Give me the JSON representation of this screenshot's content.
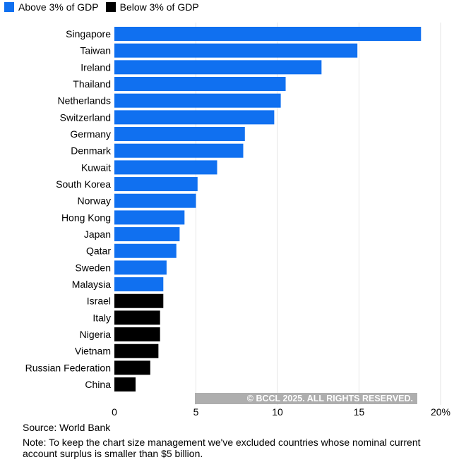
{
  "chart_data": {
    "type": "bar",
    "orientation": "horizontal",
    "legend": [
      {
        "label": "Above 3% of GDP",
        "color": "#1070f0"
      },
      {
        "label": "Below 3% of GDP",
        "color": "#000000"
      }
    ],
    "legend_position": "top-left",
    "categories": [
      "Singapore",
      "Taiwan",
      "Ireland",
      "Thailand",
      "Netherlands",
      "Switzerland",
      "Germany",
      "Denmark",
      "Kuwait",
      "South Korea",
      "Norway",
      "Hong Kong",
      "Japan",
      "Qatar",
      "Sweden",
      "Malaysia",
      "Israel",
      "Italy",
      "Nigeria",
      "Vietnam",
      "Russian Federation",
      "China"
    ],
    "values": [
      18.8,
      14.9,
      12.7,
      10.5,
      10.2,
      9.8,
      8.0,
      7.9,
      6.3,
      5.1,
      5.0,
      4.3,
      4.0,
      3.8,
      3.2,
      3.0,
      3.0,
      2.8,
      2.8,
      2.7,
      2.2,
      1.3
    ],
    "groups": [
      "above",
      "above",
      "above",
      "above",
      "above",
      "above",
      "above",
      "above",
      "above",
      "above",
      "above",
      "above",
      "above",
      "above",
      "above",
      "above",
      "below",
      "below",
      "below",
      "below",
      "below",
      "below"
    ],
    "xlim": [
      0,
      20
    ],
    "xticks": [
      "0",
      "5",
      "10",
      "15",
      "20%"
    ],
    "xtick_values": [
      0,
      5,
      10,
      15,
      20
    ],
    "grid": true
  },
  "watermark": "© BCCL 2025. ALL RIGHTS RESERVED.",
  "source": "Source: World Bank",
  "note": "Note: To keep the chart size management we've excluded countries whose nominal current account surplus is smaller than $5 billion."
}
